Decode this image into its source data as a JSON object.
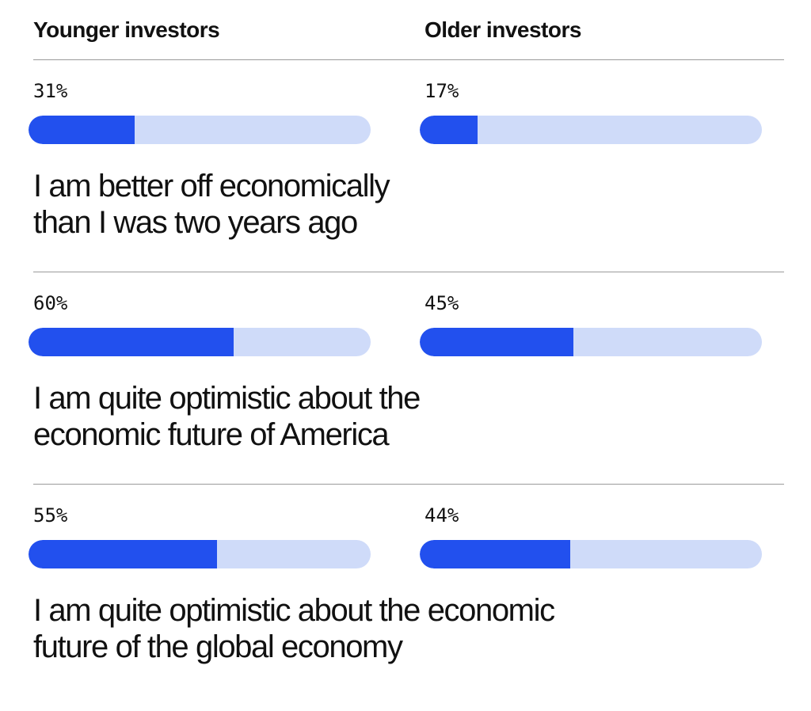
{
  "chart_data": {
    "type": "bar",
    "series": [
      {
        "name": "Younger investors",
        "values": [
          31,
          60,
          55
        ]
      },
      {
        "name": "Older investors",
        "values": [
          17,
          45,
          44
        ]
      }
    ],
    "rows": [
      {
        "statement_line1": "I am better off economically",
        "statement_line2": "than I was two years ago",
        "younger": {
          "label": "31%",
          "value": 31
        },
        "older": {
          "label": "17%",
          "value": 17
        }
      },
      {
        "statement_line1": "I am quite optimistic about the",
        "statement_line2": "economic future of America",
        "younger": {
          "label": "60%",
          "value": 60
        },
        "older": {
          "label": "45%",
          "value": 45
        }
      },
      {
        "statement_line1": "I am quite optimistic about the economic",
        "statement_line2": "future of the global economy",
        "younger": {
          "label": "55%",
          "value": 55
        },
        "older": {
          "label": "44%",
          "value": 44
        }
      }
    ],
    "ylim": [
      0,
      100
    ]
  },
  "headers": {
    "left": "Younger investors",
    "right": "Older investors"
  },
  "colors": {
    "bar_fill": "#2250ee",
    "bar_track": "#cfdbf9",
    "rule": "#9a9a9a",
    "text": "#111111"
  }
}
